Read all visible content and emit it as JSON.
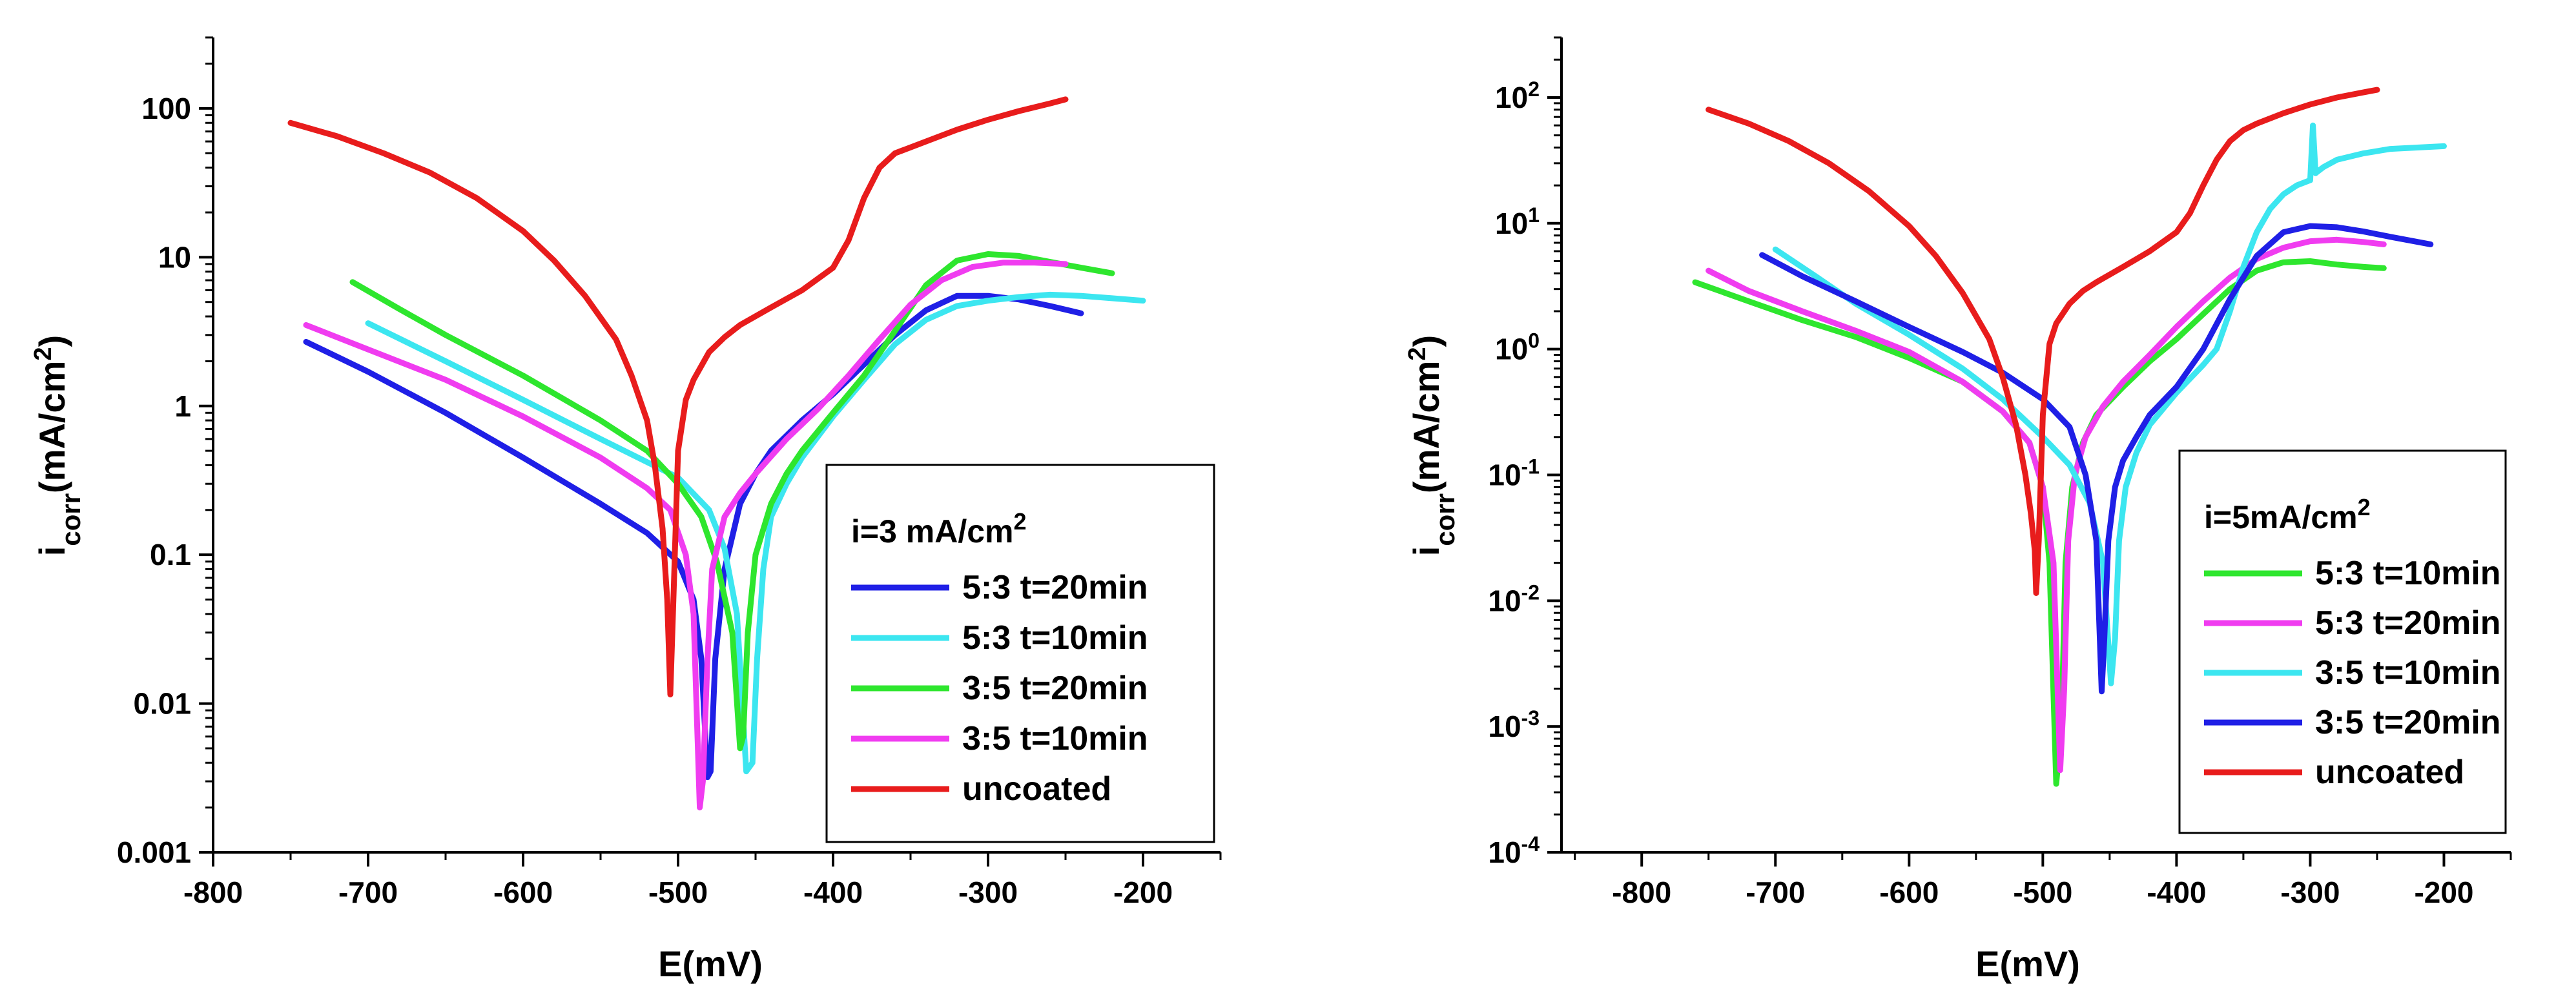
{
  "chart_data": [
    {
      "type": "line",
      "yscale": "log",
      "ytick_style": "plain",
      "xlabel": "E(mV)",
      "ylabel": {
        "base": "i",
        "sub": "corr",
        "unit_prefix": "(mA/cm",
        "sup": "2",
        "unit_suffix": ")"
      },
      "xlim": [
        -800,
        -150
      ],
      "ylim": [
        0.001,
        300
      ],
      "xticks": [
        -800,
        -700,
        -600,
        -500,
        -400,
        -300,
        -200
      ],
      "xtick_labels": [
        "-800",
        "-700",
        "-600",
        "-500",
        "-400",
        "-300",
        "-200"
      ],
      "yticks": [
        0.001,
        0.01,
        0.1,
        1,
        10,
        100
      ],
      "ytick_labels": [
        "0.001",
        "0.01",
        "0.1",
        "1",
        "10",
        "100"
      ],
      "legend": {
        "title_prefix": "i=3 mA/cm",
        "title_sup": "2",
        "placement": "bottom-right"
      },
      "series": [
        {
          "name": "5:3 t=20min",
          "color": "#1f1fe6",
          "ecorr": -480,
          "icorr": 0.0032,
          "x": [
            -740,
            -700,
            -650,
            -600,
            -550,
            -520,
            -500,
            -490,
            -485,
            -481
          ],
          "y": [
            2.7,
            1.7,
            0.9,
            0.45,
            0.22,
            0.14,
            0.09,
            0.05,
            0.02,
            0.0032
          ],
          "x2": [
            -479,
            -476,
            -470,
            -460,
            -450,
            -440,
            -420,
            -400,
            -380,
            -360,
            -340,
            -320,
            -300,
            -280,
            -260,
            -240
          ],
          "y2": [
            0.0035,
            0.02,
            0.08,
            0.22,
            0.35,
            0.5,
            0.8,
            1.2,
            1.9,
            3.0,
            4.4,
            5.5,
            5.5,
            5.2,
            4.7,
            4.2
          ]
        },
        {
          "name": "5:3 t=10min",
          "color": "#3ce6f0",
          "ecorr": -453,
          "icorr": 0.0035,
          "x": [
            -700,
            -650,
            -600,
            -550,
            -520,
            -500,
            -480,
            -470,
            -462,
            -456
          ],
          "y": [
            3.6,
            2.0,
            1.1,
            0.6,
            0.42,
            0.33,
            0.2,
            0.11,
            0.04,
            0.0035
          ],
          "x2": [
            -452,
            -449,
            -445,
            -440,
            -430,
            -420,
            -400,
            -380,
            -360,
            -340,
            -320,
            -300,
            -280,
            -260,
            -240,
            -220,
            -200
          ],
          "y2": [
            0.004,
            0.02,
            0.08,
            0.18,
            0.3,
            0.45,
            0.85,
            1.5,
            2.6,
            3.8,
            4.7,
            5.1,
            5.4,
            5.6,
            5.5,
            5.3,
            5.1
          ]
        },
        {
          "name": "3:5 t=20min",
          "color": "#2ee62e",
          "ecorr": -460,
          "icorr": 0.005,
          "x": [
            -710,
            -680,
            -650,
            -600,
            -550,
            -520,
            -500,
            -485,
            -475,
            -465,
            -460
          ],
          "y": [
            6.8,
            4.5,
            3.0,
            1.6,
            0.8,
            0.5,
            0.3,
            0.18,
            0.09,
            0.03,
            0.005
          ],
          "x2": [
            -458,
            -455,
            -450,
            -440,
            -430,
            -420,
            -400,
            -380,
            -360,
            -340,
            -320,
            -300,
            -280,
            -260,
            -240,
            -220
          ],
          "y2": [
            0.006,
            0.03,
            0.1,
            0.22,
            0.35,
            0.5,
            0.9,
            1.6,
            3.2,
            6.5,
            9.5,
            10.5,
            10.2,
            9.3,
            8.5,
            7.8
          ]
        },
        {
          "name": "3:5 t=10min",
          "color": "#f03cf0",
          "ecorr": -485,
          "icorr": 0.002,
          "x": [
            -740,
            -700,
            -650,
            -600,
            -550,
            -520,
            -505,
            -495,
            -490,
            -486
          ],
          "y": [
            3.5,
            2.4,
            1.5,
            0.85,
            0.45,
            0.28,
            0.2,
            0.1,
            0.04,
            0.002
          ],
          "x2": [
            -484,
            -481,
            -478,
            -470,
            -460,
            -450,
            -430,
            -410,
            -390,
            -370,
            -350,
            -330,
            -310,
            -290,
            -270,
            -250
          ],
          "y2": [
            0.003,
            0.02,
            0.08,
            0.18,
            0.26,
            0.35,
            0.6,
            0.95,
            1.6,
            2.8,
            4.8,
            7.0,
            8.6,
            9.2,
            9.2,
            9.0
          ]
        },
        {
          "name": "uncoated",
          "color": "#e81c1c",
          "ecorr": -505,
          "icorr": 0.0115,
          "x": [
            -750,
            -720,
            -690,
            -660,
            -630,
            -600,
            -580,
            -560,
            -540,
            -530,
            -520,
            -515,
            -510,
            -507,
            -505
          ],
          "y": [
            80,
            65,
            50,
            37,
            25,
            15,
            9.5,
            5.5,
            2.8,
            1.6,
            0.8,
            0.4,
            0.15,
            0.05,
            0.0115
          ],
          "x2": [
            -503,
            -500,
            -495,
            -490,
            -480,
            -470,
            -460,
            -440,
            -420,
            -400,
            -390,
            -380,
            -370,
            -360,
            -340,
            -320,
            -300,
            -280,
            -260,
            -250
          ],
          "y2": [
            0.05,
            0.5,
            1.1,
            1.5,
            2.3,
            2.9,
            3.5,
            4.6,
            6.0,
            8.5,
            13,
            25,
            40,
            50,
            60,
            72,
            84,
            96,
            108,
            115
          ]
        }
      ]
    },
    {
      "type": "line",
      "yscale": "log",
      "ytick_style": "power",
      "xlabel": "E(mV)",
      "ylabel": {
        "base": "i",
        "sub": "corr",
        "unit_prefix": "(mA/cm",
        "sup": "2",
        "unit_suffix": ")"
      },
      "xlim": [
        -860,
        -150
      ],
      "ylim": [
        0.0001,
        300
      ],
      "xticks": [
        -800,
        -700,
        -600,
        -500,
        -400,
        -300,
        -200
      ],
      "xtick_labels": [
        "-800",
        "-700",
        "-600",
        "-500",
        "-400",
        "-300",
        "-200"
      ],
      "yticks": [
        0.0001,
        0.001,
        0.01,
        0.1,
        1,
        10,
        100
      ],
      "ytick_labels": [
        {
          "base": "10",
          "exp": "-4"
        },
        {
          "base": "10",
          "exp": "-3"
        },
        {
          "base": "10",
          "exp": "-2"
        },
        {
          "base": "10",
          "exp": "-1"
        },
        {
          "base": "10",
          "exp": "0"
        },
        {
          "base": "10",
          "exp": "1"
        },
        {
          "base": "10",
          "exp": "2"
        }
      ],
      "legend": {
        "title_prefix": "i=5mA/cm",
        "title_sup": "2",
        "placement": "bottom-right"
      },
      "series": [
        {
          "name": "5:3 t=10min",
          "color": "#2ee62e",
          "ecorr": -488,
          "icorr": 0.00035,
          "x": [
            -760,
            -720,
            -680,
            -640,
            -600,
            -560,
            -530,
            -510,
            -500,
            -495,
            -490
          ],
          "y": [
            3.4,
            2.4,
            1.7,
            1.25,
            0.85,
            0.55,
            0.32,
            0.18,
            0.08,
            0.02,
            0.00035
          ],
          "x2": [
            -486,
            -483,
            -478,
            -470,
            -460,
            -440,
            -420,
            -400,
            -380,
            -360,
            -340,
            -320,
            -300,
            -280,
            -260,
            -245
          ],
          "y2": [
            0.001,
            0.02,
            0.08,
            0.18,
            0.3,
            0.5,
            0.8,
            1.2,
            1.9,
            3.0,
            4.2,
            4.9,
            5.0,
            4.7,
            4.5,
            4.4
          ]
        },
        {
          "name": "5:3 t=20min",
          "color": "#f03cf0",
          "ecorr": -485,
          "icorr": 0.00045,
          "x": [
            -750,
            -720,
            -680,
            -640,
            -600,
            -560,
            -530,
            -510,
            -500,
            -492,
            -487
          ],
          "y": [
            4.2,
            2.9,
            2.0,
            1.4,
            0.95,
            0.55,
            0.32,
            0.18,
            0.08,
            0.02,
            0.00045
          ],
          "x2": [
            -484,
            -481,
            -476,
            -468,
            -455,
            -440,
            -420,
            -400,
            -380,
            -360,
            -340,
            -320,
            -300,
            -280,
            -260,
            -245
          ],
          "y2": [
            0.002,
            0.03,
            0.1,
            0.2,
            0.35,
            0.55,
            0.9,
            1.5,
            2.4,
            3.7,
            5.2,
            6.4,
            7.2,
            7.4,
            7.1,
            6.8
          ]
        },
        {
          "name": "3:5 t=10min",
          "color": "#3ce6f0",
          "ecorr": -447,
          "icorr": 0.0022,
          "x": [
            -700,
            -670,
            -640,
            -600,
            -560,
            -530,
            -500,
            -480,
            -465,
            -455,
            -449
          ],
          "y": [
            6.2,
            3.8,
            2.3,
            1.3,
            0.7,
            0.4,
            0.2,
            0.12,
            0.06,
            0.02,
            0.0022
          ],
          "x2": [
            -446,
            -443,
            -438,
            -430,
            -420,
            -400,
            -380,
            -370,
            -360,
            -350,
            -340,
            -330,
            -320,
            -310,
            -300,
            -298,
            -296,
            -294,
            -290,
            -280,
            -260,
            -240,
            -220,
            -200
          ],
          "y2": [
            0.005,
            0.03,
            0.08,
            0.15,
            0.25,
            0.45,
            0.75,
            1.0,
            2.0,
            4.5,
            8.5,
            13,
            17,
            20,
            22,
            60,
            25,
            26,
            28,
            32,
            36,
            39,
            40,
            41
          ]
        },
        {
          "name": "3:5 t=20min",
          "color": "#1f1fe6",
          "ecorr": -455,
          "icorr": 0.0019,
          "x": [
            -710,
            -680,
            -640,
            -600,
            -560,
            -530,
            -500,
            -480,
            -468,
            -460,
            -456
          ],
          "y": [
            5.6,
            3.8,
            2.4,
            1.5,
            0.95,
            0.65,
            0.4,
            0.24,
            0.1,
            0.03,
            0.0019
          ],
          "x2": [
            -454,
            -451,
            -446,
            -440,
            -430,
            -420,
            -400,
            -380,
            -360,
            -340,
            -320,
            -300,
            -280,
            -260,
            -240,
            -210
          ],
          "y2": [
            0.005,
            0.03,
            0.08,
            0.13,
            0.2,
            0.3,
            0.5,
            1.0,
            2.5,
            5.5,
            8.5,
            9.5,
            9.3,
            8.6,
            7.8,
            6.8
          ]
        },
        {
          "name": "uncoated",
          "color": "#e81c1c",
          "ecorr": -505,
          "icorr": 0.0115,
          "x": [
            -750,
            -720,
            -690,
            -660,
            -630,
            -600,
            -580,
            -560,
            -540,
            -530,
            -520,
            -513,
            -509,
            -506,
            -505
          ],
          "y": [
            80,
            62,
            45,
            30,
            18,
            9.5,
            5.5,
            2.8,
            1.2,
            0.6,
            0.25,
            0.1,
            0.05,
            0.025,
            0.0115
          ],
          "x2": [
            -503,
            -500,
            -495,
            -490,
            -480,
            -470,
            -460,
            -440,
            -420,
            -400,
            -390,
            -380,
            -370,
            -360,
            -350,
            -340,
            -320,
            -300,
            -280,
            -260,
            -250
          ],
          "y2": [
            0.03,
            0.3,
            1.1,
            1.6,
            2.3,
            2.9,
            3.4,
            4.5,
            6.0,
            8.5,
            12,
            20,
            32,
            45,
            55,
            62,
            75,
            88,
            100,
            110,
            115
          ]
        }
      ]
    }
  ]
}
